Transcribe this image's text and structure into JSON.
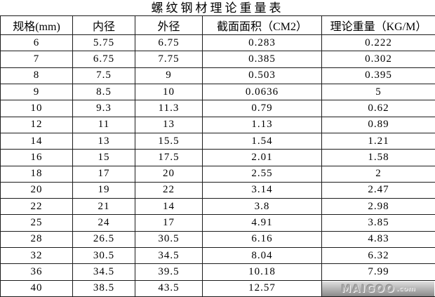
{
  "title": "螺纹钢材理论重量表",
  "table": {
    "headers": [
      "规格(mm)",
      "内径",
      "外径",
      "截面面积（CM2）",
      "理论重量（KG/M）"
    ],
    "column_keys": [
      "spec-mm",
      "inner-diameter",
      "outer-diameter",
      "section-area",
      "theoretical-weight"
    ],
    "rows": [
      [
        "6",
        "5.75",
        "6.75",
        "0.283",
        "0.222"
      ],
      [
        "7",
        "6.75",
        "7.75",
        "0.385",
        "0.302"
      ],
      [
        "8",
        "7.5",
        "9",
        "0.503",
        "0.395"
      ],
      [
        "9",
        "8.5",
        "10",
        "0.0636",
        "5"
      ],
      [
        "10",
        "9.3",
        "11.3",
        "0.79",
        "0.62"
      ],
      [
        "12",
        "11",
        "13",
        "1.13",
        "0.89"
      ],
      [
        "14",
        "13",
        "15.5",
        "1.54",
        "1.21"
      ],
      [
        "16",
        "15",
        "17.5",
        "2.01",
        "1.58"
      ],
      [
        "18",
        "17",
        "20",
        "2.55",
        "2"
      ],
      [
        "20",
        "19",
        "22",
        "3.14",
        "2.47"
      ],
      [
        "22",
        "21",
        "14",
        "3.8",
        "2.98"
      ],
      [
        "25",
        "24",
        "17",
        "4.91",
        "3.85"
      ],
      [
        "28",
        "26.5",
        "30.5",
        "6.16",
        "4.83"
      ],
      [
        "32",
        "30.5",
        "34.5",
        "8.04",
        "6.32"
      ],
      [
        "36",
        "34.5",
        "39.5",
        "10.18",
        "7.99"
      ],
      [
        "40",
        "38.5",
        "43.5",
        "12.57",
        ""
      ]
    ]
  },
  "watermark": {
    "brand": "MAIGOO",
    "suffix": ".com",
    "background_top": "#dedede",
    "background_bottom": "#8a8a8a"
  }
}
